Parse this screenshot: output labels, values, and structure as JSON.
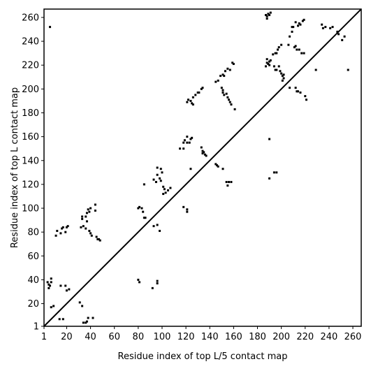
{
  "chart_data": {
    "type": "scatter",
    "title": "",
    "xlabel": "Residue index of top L/5 contact map",
    "ylabel": "Residue index of top L contact map",
    "xlim": [
      1,
      267
    ],
    "ylim": [
      1,
      267
    ],
    "xticks": [
      1,
      20,
      40,
      60,
      80,
      100,
      120,
      140,
      160,
      180,
      200,
      220,
      240,
      260
    ],
    "yticks": [
      1,
      20,
      40,
      60,
      80,
      100,
      120,
      140,
      160,
      180,
      200,
      220,
      240,
      260
    ],
    "diagonal": true,
    "grid": false,
    "marker_color": "#000000",
    "series": [
      {
        "values": [
          [
            6,
            252
          ],
          [
            5,
            33
          ],
          [
            5,
            36
          ],
          [
            7,
            38
          ],
          [
            7,
            41
          ],
          [
            6,
            35
          ],
          [
            4,
            38
          ],
          [
            7,
            17
          ],
          [
            9,
            18
          ],
          [
            15,
            35
          ],
          [
            19,
            35
          ],
          [
            20,
            31
          ],
          [
            22,
            32
          ],
          [
            14,
            7
          ],
          [
            17,
            7
          ],
          [
            31,
            21
          ],
          [
            33,
            18
          ],
          [
            34,
            4
          ],
          [
            36,
            4
          ],
          [
            37,
            5
          ],
          [
            38,
            8
          ],
          [
            42,
            8
          ],
          [
            11,
            77
          ],
          [
            12,
            81
          ],
          [
            15,
            79
          ],
          [
            16,
            83
          ],
          [
            17,
            84
          ],
          [
            19,
            80
          ],
          [
            20,
            84
          ],
          [
            21,
            85
          ],
          [
            32,
            84
          ],
          [
            33,
            93
          ],
          [
            34,
            85
          ],
          [
            33,
            91
          ],
          [
            37,
            89
          ],
          [
            36,
            93
          ],
          [
            36,
            83
          ],
          [
            37,
            96
          ],
          [
            38,
            99
          ],
          [
            39,
            97
          ],
          [
            40,
            100
          ],
          [
            39,
            81
          ],
          [
            40,
            79
          ],
          [
            41,
            77
          ],
          [
            44,
            98
          ],
          [
            44,
            103
          ],
          [
            45,
            76
          ],
          [
            46,
            74
          ],
          [
            47,
            74
          ],
          [
            48,
            73
          ],
          [
            80,
            100
          ],
          [
            81,
            101
          ],
          [
            83,
            100
          ],
          [
            84,
            97
          ],
          [
            85,
            92
          ],
          [
            85,
            120
          ],
          [
            86,
            92
          ],
          [
            80,
            40
          ],
          [
            81,
            38
          ],
          [
            92,
            33
          ],
          [
            96,
            39
          ],
          [
            96,
            37
          ],
          [
            93,
            85
          ],
          [
            96,
            86
          ],
          [
            98,
            81
          ],
          [
            93,
            124
          ],
          [
            95,
            122
          ],
          [
            96,
            134
          ],
          [
            96,
            128
          ],
          [
            98,
            125
          ],
          [
            99,
            133
          ],
          [
            100,
            130
          ],
          [
            99,
            123
          ],
          [
            101,
            118
          ],
          [
            102,
            116
          ],
          [
            103,
            113
          ],
          [
            105,
            115
          ],
          [
            107,
            117
          ],
          [
            101,
            112
          ],
          [
            115,
            150
          ],
          [
            118,
            150
          ],
          [
            118,
            155
          ],
          [
            119,
            157
          ],
          [
            121,
            155
          ],
          [
            121,
            160
          ],
          [
            123,
            155
          ],
          [
            124,
            158
          ],
          [
            125,
            159
          ],
          [
            118,
            101
          ],
          [
            121,
            99
          ],
          [
            121,
            97
          ],
          [
            124,
            133
          ],
          [
            121,
            189
          ],
          [
            122,
            191
          ],
          [
            124,
            190
          ],
          [
            125,
            188
          ],
          [
            126,
            187
          ],
          [
            126,
            193
          ],
          [
            128,
            195
          ],
          [
            130,
            197
          ],
          [
            131,
            197
          ],
          [
            133,
            200
          ],
          [
            134,
            201
          ],
          [
            133,
            151
          ],
          [
            134,
            148
          ],
          [
            134,
            146
          ],
          [
            136,
            145
          ],
          [
            137,
            144
          ],
          [
            135,
            147
          ],
          [
            145,
            137
          ],
          [
            146,
            136
          ],
          [
            147,
            135
          ],
          [
            151,
            133
          ],
          [
            145,
            206
          ],
          [
            147,
            207
          ],
          [
            149,
            211
          ],
          [
            151,
            212
          ],
          [
            152,
            211
          ],
          [
            153,
            215
          ],
          [
            155,
            217
          ],
          [
            157,
            216
          ],
          [
            160,
            221
          ],
          [
            159,
            222
          ],
          [
            150,
            201
          ],
          [
            151,
            199
          ],
          [
            151,
            197
          ],
          [
            152,
            195
          ],
          [
            154,
            196
          ],
          [
            155,
            193
          ],
          [
            156,
            191
          ],
          [
            157,
            189
          ],
          [
            158,
            187
          ],
          [
            161,
            183
          ],
          [
            154,
            122
          ],
          [
            155,
            119
          ],
          [
            156,
            122
          ],
          [
            158,
            122
          ],
          [
            187,
            262
          ],
          [
            188,
            261
          ],
          [
            189,
            263
          ],
          [
            190,
            262
          ],
          [
            191,
            264
          ],
          [
            188,
            259
          ],
          [
            187,
            219
          ],
          [
            188,
            222
          ],
          [
            188,
            225
          ],
          [
            189,
            221
          ],
          [
            190,
            223
          ],
          [
            191,
            224
          ],
          [
            190,
            220
          ],
          [
            193,
            229
          ],
          [
            195,
            230
          ],
          [
            196,
            230
          ],
          [
            197,
            233
          ],
          [
            198,
            235
          ],
          [
            200,
            237
          ],
          [
            194,
            219
          ],
          [
            195,
            216
          ],
          [
            196,
            216
          ],
          [
            198,
            219
          ],
          [
            199,
            215
          ],
          [
            200,
            213
          ],
          [
            201,
            211
          ],
          [
            202,
            212
          ],
          [
            202,
            209
          ],
          [
            201,
            207
          ],
          [
            206,
            237
          ],
          [
            207,
            244
          ],
          [
            209,
            248
          ],
          [
            209,
            252
          ],
          [
            210,
            252
          ],
          [
            212,
            256
          ],
          [
            214,
            253
          ],
          [
            215,
            255
          ],
          [
            216,
            254
          ],
          [
            218,
            257
          ],
          [
            219,
            258
          ],
          [
            215,
            233
          ],
          [
            217,
            230
          ],
          [
            219,
            230
          ],
          [
            211,
            235
          ],
          [
            212,
            236
          ],
          [
            213,
            233
          ],
          [
            212,
            201
          ],
          [
            213,
            198
          ],
          [
            214,
            198
          ],
          [
            216,
            197
          ],
          [
            220,
            194
          ],
          [
            221,
            191
          ],
          [
            207,
            201
          ],
          [
            190,
            158
          ],
          [
            190,
            125
          ],
          [
            194,
            130
          ],
          [
            196,
            130
          ],
          [
            234,
            254
          ],
          [
            235,
            251
          ],
          [
            237,
            252
          ],
          [
            241,
            251
          ],
          [
            243,
            252
          ],
          [
            247,
            248
          ],
          [
            248,
            246
          ],
          [
            251,
            241
          ],
          [
            253,
            244
          ],
          [
            256,
            216
          ],
          [
            229,
            216
          ]
        ]
      }
    ]
  }
}
